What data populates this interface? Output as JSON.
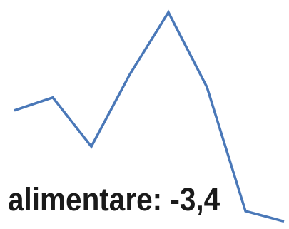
{
  "chart_data": {
    "type": "line",
    "title": "",
    "xlabel": "",
    "ylabel": "",
    "grid": false,
    "series": [
      {
        "color": "#4a78b8",
        "values": [
          5.2,
          6.2,
          2.4,
          8.0,
          12.8,
          7.0,
          -2.6,
          -3.4
        ]
      }
    ],
    "ylim": [
      -3.6,
      13.2
    ],
    "annotation": "alimentare: -3,4"
  }
}
